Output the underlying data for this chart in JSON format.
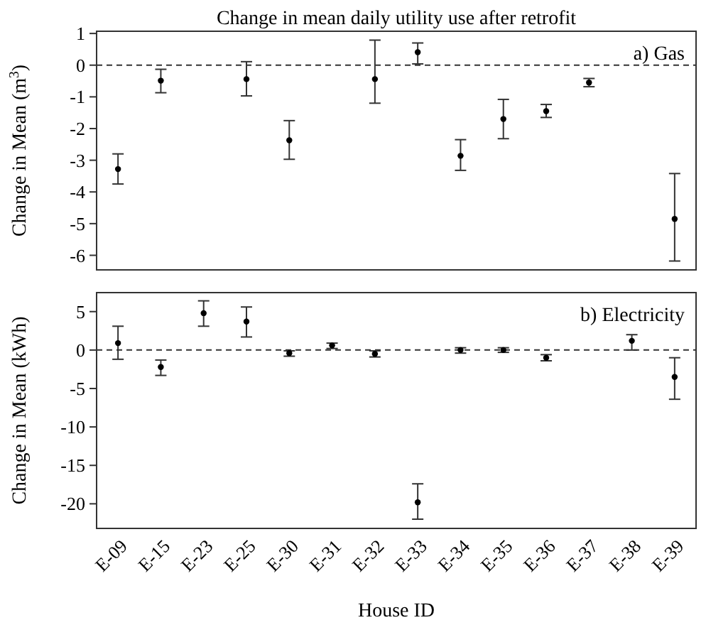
{
  "chart_data": [
    {
      "type": "scatter",
      "title": "Change in mean daily utility use after retrofit",
      "ylabel": "Change in Mean (m$^{3}$)",
      "annotations": [
        "a) Gas"
      ],
      "categories": [
        null,
        null,
        null,
        null,
        null,
        null,
        null,
        null,
        null,
        null,
        null,
        null,
        null,
        null
      ],
      "values": [
        -3.28,
        -0.49,
        null,
        -0.44,
        -2.37,
        null,
        -0.44,
        0.41,
        -2.86,
        -1.7,
        -1.45,
        -0.55,
        null,
        -4.85
      ],
      "errors": [
        [
          -3.75,
          -2.8
        ],
        [
          -0.87,
          -0.13
        ],
        null,
        [
          -0.97,
          0.11
        ],
        [
          -2.97,
          -1.75
        ],
        null,
        [
          -1.2,
          0.79
        ],
        [
          0.04,
          0.7
        ],
        [
          -3.32,
          -2.35
        ],
        [
          -2.32,
          -1.08
        ],
        [
          -1.65,
          -1.24
        ],
        [
          -0.68,
          -0.42
        ],
        null,
        [
          -6.18,
          -3.42
        ]
      ],
      "color": "#000000",
      "marker": "circle",
      "ylim": [
        -6.46,
        1.07
      ],
      "yticks": [
        -6,
        -5,
        -4,
        -3,
        -2,
        -1,
        0,
        1
      ],
      "ref_lines": [
        {
          "axis": "y",
          "value": 0,
          "line_style": "dashed"
        }
      ],
      "tick_labels": "y",
      "grid": false
    },
    {
      "type": "scatter",
      "xlabel": "House ID",
      "ylabel": "Change in Mean (kWh)",
      "annotations": [
        "b) Electricity"
      ],
      "categories": [
        "E-09",
        "E-15",
        "E-23",
        "E-25",
        "E-30",
        "E-31",
        "E-32",
        "E-33",
        "E-34",
        "E-35",
        "E-36",
        "E-37",
        "E-38",
        "E-39"
      ],
      "values": [
        0.9,
        -2.2,
        4.8,
        3.7,
        -0.4,
        0.6,
        -0.5,
        -19.8,
        0,
        0,
        -1,
        null,
        1.2,
        -3.5
      ],
      "errors": [
        [
          -1.2,
          3.1
        ],
        [
          -3.3,
          -1.3
        ],
        [
          3.1,
          6.4
        ],
        [
          1.7,
          5.6
        ],
        [
          -0.8,
          -0.1
        ],
        [
          0.2,
          0.9
        ],
        [
          -0.9,
          -0.1
        ],
        [
          -22,
          -17.4
        ],
        [
          -0.4,
          0.3
        ],
        [
          -0.3,
          0.3
        ],
        [
          -1.4,
          -0.6
        ],
        null,
        [
          0,
          2
        ],
        [
          -6.4,
          -1
        ]
      ],
      "color": "#000000",
      "marker": "circle",
      "ylim": [
        -23.2,
        7.47
      ],
      "yticks": [
        -20,
        -15,
        -10,
        -5,
        0,
        5
      ],
      "ref_lines": [
        {
          "axis": "y",
          "value": 0,
          "line_style": "dashed"
        }
      ],
      "grid": false
    }
  ]
}
